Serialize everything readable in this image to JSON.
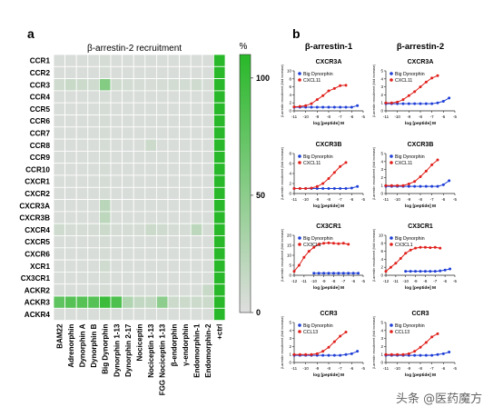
{
  "panel_labels": {
    "a": "a",
    "b": "b"
  },
  "heatmap": {
    "title": "β-arrestin-2 recruitment",
    "colorbar_unit": "%",
    "colorbar_ticks": [
      0,
      50,
      100
    ]
  },
  "watermark": "头条 @医药魔方",
  "chart_data": [
    {
      "type": "heatmap",
      "title": "β-arrestin-2 recruitment",
      "rows": [
        "CCR1",
        "CCR2",
        "CCR3",
        "CCR4",
        "CCR5",
        "CCR6",
        "CCR7",
        "CCR8",
        "CCR9",
        "CCR10",
        "CXCR1",
        "CXCR2",
        "CXCR3A",
        "CXCR3B",
        "CXCR4",
        "CXCR5",
        "CXCR6",
        "XCR1",
        "CX3CR1",
        "ACKR2",
        "ACKR3",
        "ACKR4"
      ],
      "columns": [
        "BAM22",
        "Adrenorphin",
        "Dynorphin A",
        "Dynorphin B",
        "Big Dynorphin",
        "Dynorphin 1-13",
        "Dynorphin 2-17",
        "Nociceptin",
        "Nociceptin 1-13",
        "FGG Nociceptin 1-13",
        "β-endorphin",
        "γ-endorphin",
        "Endomorphin-1",
        "Endomorphin-2",
        "+ctrl"
      ],
      "scale": {
        "min": 0,
        "max": 100,
        "unit": "%"
      },
      "values": [
        [
          3,
          3,
          3,
          3,
          5,
          3,
          3,
          3,
          3,
          3,
          3,
          3,
          3,
          3,
          100
        ],
        [
          3,
          3,
          3,
          3,
          5,
          3,
          3,
          3,
          3,
          3,
          3,
          3,
          3,
          3,
          100
        ],
        [
          8,
          12,
          10,
          8,
          50,
          8,
          6,
          5,
          4,
          5,
          6,
          6,
          8,
          5,
          100
        ],
        [
          3,
          3,
          3,
          3,
          5,
          3,
          3,
          3,
          3,
          3,
          3,
          3,
          3,
          3,
          100
        ],
        [
          3,
          3,
          3,
          3,
          5,
          3,
          3,
          3,
          3,
          3,
          3,
          3,
          3,
          3,
          100
        ],
        [
          3,
          3,
          3,
          3,
          5,
          3,
          3,
          3,
          3,
          3,
          3,
          3,
          3,
          3,
          100
        ],
        [
          3,
          3,
          3,
          3,
          5,
          3,
          3,
          3,
          3,
          3,
          3,
          3,
          3,
          3,
          100
        ],
        [
          3,
          3,
          3,
          3,
          5,
          3,
          3,
          3,
          10,
          3,
          3,
          3,
          3,
          3,
          100
        ],
        [
          3,
          3,
          3,
          3,
          5,
          3,
          3,
          3,
          3,
          3,
          3,
          3,
          3,
          3,
          100
        ],
        [
          3,
          3,
          3,
          3,
          5,
          3,
          3,
          3,
          3,
          3,
          3,
          3,
          3,
          3,
          100
        ],
        [
          3,
          3,
          3,
          3,
          5,
          3,
          3,
          3,
          3,
          3,
          3,
          3,
          3,
          3,
          100
        ],
        [
          3,
          3,
          3,
          3,
          5,
          3,
          3,
          3,
          3,
          3,
          3,
          3,
          3,
          3,
          100
        ],
        [
          3,
          3,
          3,
          3,
          20,
          3,
          3,
          3,
          3,
          3,
          3,
          3,
          3,
          3,
          100
        ],
        [
          3,
          3,
          3,
          3,
          18,
          3,
          3,
          3,
          3,
          3,
          3,
          3,
          3,
          3,
          100
        ],
        [
          8,
          5,
          5,
          5,
          10,
          5,
          5,
          5,
          10,
          8,
          5,
          5,
          18,
          5,
          100
        ],
        [
          3,
          3,
          3,
          3,
          5,
          3,
          3,
          3,
          3,
          3,
          3,
          3,
          3,
          3,
          100
        ],
        [
          3,
          3,
          3,
          3,
          5,
          3,
          3,
          3,
          3,
          3,
          3,
          3,
          3,
          3,
          100
        ],
        [
          3,
          3,
          3,
          3,
          8,
          3,
          3,
          3,
          3,
          3,
          3,
          3,
          3,
          3,
          100
        ],
        [
          3,
          3,
          3,
          3,
          5,
          3,
          3,
          3,
          3,
          3,
          3,
          3,
          3,
          3,
          100
        ],
        [
          3,
          3,
          3,
          3,
          5,
          3,
          3,
          3,
          3,
          3,
          3,
          3,
          3,
          12,
          100
        ],
        [
          70,
          75,
          75,
          75,
          90,
          80,
          25,
          15,
          15,
          45,
          10,
          10,
          10,
          10,
          100
        ],
        [
          3,
          3,
          3,
          3,
          5,
          3,
          3,
          3,
          3,
          3,
          3,
          3,
          3,
          3,
          100
        ]
      ]
    },
    {
      "type": "line",
      "columns": [
        "β-arrestin-1",
        "β-arrestin-2"
      ],
      "ylabel": "β-arrestin recruitment (fold increase)",
      "xlabel": "log [peptide]  M",
      "panels": [
        {
          "title": "CXCR3A",
          "column": 0,
          "x_ticks": [
            -11,
            -10,
            -9,
            -8,
            -7,
            -6,
            -5
          ],
          "y_ticks": [
            0,
            2,
            4,
            6,
            8,
            10
          ],
          "series": [
            {
              "name": "Big Dynorphin",
              "color": "#1f3fd6",
              "x": [
                -11,
                -10.5,
                -10,
                -9.5,
                -9,
                -8.5,
                -8,
                -7.5,
                -7,
                -6.5,
                -6,
                -5.5
              ],
              "y": [
                0.9,
                0.9,
                0.9,
                0.9,
                0.9,
                0.9,
                0.9,
                0.9,
                0.9,
                0.9,
                0.9,
                1.3
              ]
            },
            {
              "name": "CXCL11",
              "color": "#e0201b",
              "x": [
                -11,
                -10.5,
                -10,
                -9.5,
                -9,
                -8.5,
                -8,
                -7.5,
                -7,
                -6.5
              ],
              "y": [
                1,
                1.1,
                1.3,
                1.8,
                2.8,
                3.8,
                5,
                5.6,
                6.3,
                6.4
              ]
            }
          ]
        },
        {
          "title": "CXCR3A",
          "column": 1,
          "x_ticks": [
            -11,
            -10,
            -9,
            -8,
            -7,
            -6,
            -5
          ],
          "y_ticks": [
            0,
            1,
            2,
            3,
            4,
            5
          ],
          "series": [
            {
              "name": "Big Dynorphin",
              "color": "#1f3fd6",
              "x": [
                -11,
                -10.5,
                -10,
                -9.5,
                -9,
                -8.5,
                -8,
                -7.5,
                -7,
                -6.5,
                -6,
                -5.5
              ],
              "y": [
                0.9,
                0.9,
                0.9,
                0.9,
                0.9,
                0.9,
                0.9,
                0.9,
                0.9,
                1,
                1.2,
                1.6
              ]
            },
            {
              "name": "CXCL11",
              "color": "#e0201b",
              "x": [
                -11,
                -10.5,
                -10,
                -9.5,
                -9,
                -8.5,
                -8,
                -7.5,
                -7,
                -6.5
              ],
              "y": [
                1,
                1,
                1.1,
                1.4,
                1.9,
                2.4,
                3,
                3.6,
                4.1,
                4.4
              ]
            }
          ]
        },
        {
          "title": "CXCR3B",
          "column": 0,
          "x_ticks": [
            -11,
            -10,
            -9,
            -8,
            -7,
            -6,
            -5
          ],
          "y_ticks": [
            0,
            2,
            4,
            6,
            8
          ],
          "series": [
            {
              "name": "Big Dynorphin",
              "color": "#1f3fd6",
              "x": [
                -11,
                -10.5,
                -10,
                -9.5,
                -9,
                -8.5,
                -8,
                -7.5,
                -7,
                -6.5,
                -6,
                -5.5
              ],
              "y": [
                1,
                1,
                1,
                1,
                1,
                1,
                1,
                1,
                1,
                1,
                1.1,
                1.4
              ]
            },
            {
              "name": "CXCL11",
              "color": "#e0201b",
              "x": [
                -11,
                -10.5,
                -10,
                -9.5,
                -9,
                -8.5,
                -8,
                -7.5,
                -7,
                -6.5
              ],
              "y": [
                1,
                1,
                1,
                1.1,
                1.4,
                2,
                3,
                4.2,
                5.4,
                6.2
              ]
            }
          ]
        },
        {
          "title": "CXCR3B",
          "column": 1,
          "x_ticks": [
            -11,
            -10,
            -9,
            -8,
            -7,
            -6,
            -5
          ],
          "y_ticks": [
            0,
            1,
            2,
            3,
            4,
            5
          ],
          "series": [
            {
              "name": "Big Dynorphin",
              "color": "#1f3fd6",
              "x": [
                -11,
                -10.5,
                -10,
                -9.5,
                -9,
                -8.5,
                -8,
                -7.5,
                -7,
                -6.5,
                -6,
                -5.5
              ],
              "y": [
                0.9,
                0.9,
                0.9,
                0.9,
                0.9,
                0.9,
                0.9,
                0.9,
                0.9,
                0.9,
                1.1,
                1.6
              ]
            },
            {
              "name": "CXCL11",
              "color": "#e0201b",
              "x": [
                -11,
                -10.5,
                -10,
                -9.5,
                -9,
                -8.5,
                -8,
                -7.5,
                -7,
                -6.5
              ],
              "y": [
                1,
                1,
                1,
                1,
                1.2,
                1.5,
                2.1,
                2.8,
                3.6,
                4.2
              ]
            }
          ]
        },
        {
          "title": "CX3CR1",
          "column": 0,
          "x_ticks": [
            -12,
            -11,
            -10,
            -9,
            -8,
            -7,
            -6,
            -5
          ],
          "y_ticks": [
            0,
            5,
            10,
            15,
            20
          ],
          "series": [
            {
              "name": "Big Dynorphin",
              "color": "#1f3fd6",
              "x": [
                -10,
                -9.5,
                -9,
                -8.5,
                -8,
                -7.5,
                -7,
                -6.5,
                -6,
                -5.5
              ],
              "y": [
                1,
                1,
                1,
                1,
                1,
                1,
                1,
                1,
                1,
                1
              ]
            },
            {
              "name": "CX3CL1",
              "color": "#e0201b",
              "x": [
                -12,
                -11.5,
                -11,
                -10.5,
                -10,
                -9.5,
                -9,
                -8.5,
                -8,
                -7.5,
                -7,
                -6.5
              ],
              "y": [
                2,
                5,
                9,
                12,
                14,
                15.5,
                16,
                16.2,
                16,
                15.8,
                16,
                15.5
              ]
            }
          ]
        },
        {
          "title": "CX3CR1",
          "column": 1,
          "x_ticks": [
            -12,
            -11,
            -10,
            -9,
            -8,
            -7,
            -6,
            -5
          ],
          "y_ticks": [
            0,
            2,
            4,
            6,
            8,
            10
          ],
          "series": [
            {
              "name": "Big Dynorphin",
              "color": "#1f3fd6",
              "x": [
                -10,
                -9.5,
                -9,
                -8.5,
                -8,
                -7.5,
                -7,
                -6.5,
                -6,
                -5.5
              ],
              "y": [
                1,
                1,
                1,
                1,
                1,
                1,
                1,
                1.1,
                1.3,
                1.6
              ]
            },
            {
              "name": "CX3CL1",
              "color": "#e0201b",
              "x": [
                -12,
                -11.5,
                -11,
                -10.5,
                -10,
                -9.5,
                -9,
                -8.5,
                -8,
                -7.5,
                -7,
                -6.5
              ],
              "y": [
                1,
                2,
                3,
                4.2,
                5.5,
                6.3,
                6.8,
                7,
                7,
                6.9,
                7,
                6.8
              ]
            }
          ]
        },
        {
          "title": "CCR3",
          "column": 0,
          "x_ticks": [
            -11,
            -10,
            -9,
            -8,
            -7,
            -6,
            -5
          ],
          "y_ticks": [
            0,
            1,
            2,
            3,
            4,
            5
          ],
          "series": [
            {
              "name": "Big Dynorphin",
              "color": "#1f3fd6",
              "x": [
                -11,
                -10.5,
                -10,
                -9.5,
                -9,
                -8.5,
                -8,
                -7.5,
                -7,
                -6.5,
                -6,
                -5.5
              ],
              "y": [
                0.9,
                0.9,
                0.9,
                0.9,
                0.9,
                0.9,
                0.9,
                0.9,
                0.9,
                1,
                1.1,
                1.4
              ]
            },
            {
              "name": "CCL13",
              "color": "#e0201b",
              "x": [
                -11,
                -10.5,
                -10,
                -9.5,
                -9,
                -8.5,
                -8,
                -7.5,
                -7,
                -6.5
              ],
              "y": [
                1,
                1,
                1,
                1,
                1.1,
                1.4,
                1.9,
                2.6,
                3.3,
                3.8
              ]
            }
          ]
        },
        {
          "title": "CCR3",
          "column": 1,
          "x_ticks": [
            -11,
            -10,
            -9,
            -8,
            -7,
            -6,
            -5
          ],
          "y_ticks": [
            0,
            1,
            2,
            3,
            4,
            5
          ],
          "series": [
            {
              "name": "Big Dynorphin",
              "color": "#1f3fd6",
              "x": [
                -11,
                -10.5,
                -10,
                -9.5,
                -9,
                -8.5,
                -8,
                -7.5,
                -7,
                -6.5,
                -6,
                -5.5
              ],
              "y": [
                0.9,
                0.9,
                0.9,
                0.9,
                0.9,
                0.9,
                0.9,
                0.9,
                0.9,
                1,
                1.1,
                1.3
              ]
            },
            {
              "name": "CCL13",
              "color": "#e0201b",
              "x": [
                -11,
                -10.5,
                -10,
                -9.5,
                -9,
                -8.5,
                -8,
                -7.5,
                -7,
                -6.5
              ],
              "y": [
                1,
                1,
                1,
                1,
                1.1,
                1.4,
                1.9,
                2.5,
                3.2,
                3.6
              ]
            }
          ]
        }
      ]
    }
  ]
}
